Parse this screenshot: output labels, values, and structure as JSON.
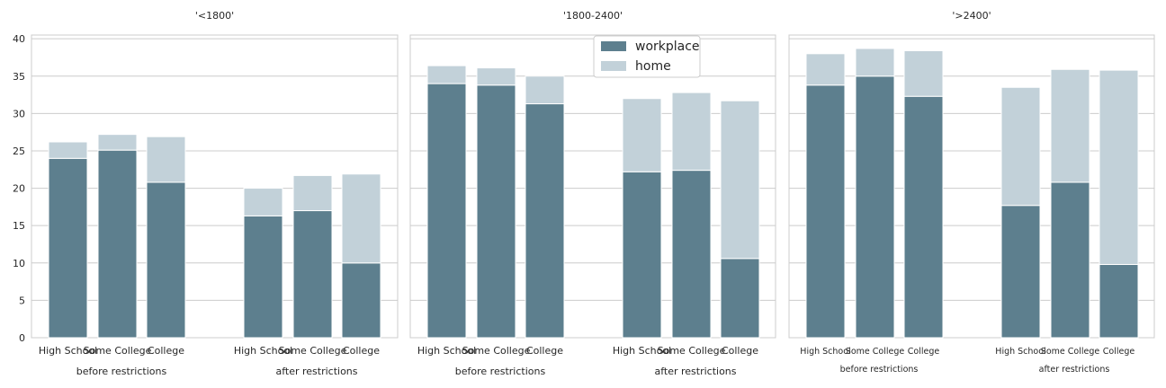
{
  "chart_data": {
    "type": "bar",
    "stacked": true,
    "colors": {
      "workplace": "#5d7f8e",
      "home": "#c2d1d9"
    },
    "legend": {
      "placement": "top-center",
      "entries": [
        "workplace",
        "home"
      ]
    },
    "y_ticks": [
      "0",
      "5",
      "10",
      "15",
      "20",
      "25",
      "30",
      "35",
      "40"
    ],
    "ylim": [
      0,
      40.5
    ],
    "grid": true,
    "panels": [
      {
        "title": "'<1800'",
        "groups": [
          {
            "label": "before restrictions",
            "categories": [
              "High School",
              "Some College",
              "College"
            ],
            "series": [
              {
                "name": "workplace",
                "values": [
                  24.0,
                  25.1,
                  20.8
                ]
              },
              {
                "name": "home",
                "values": [
                  2.2,
                  2.1,
                  6.1
                ]
              }
            ]
          },
          {
            "label": "after restrictions",
            "categories": [
              "High School",
              "Some College",
              "College"
            ],
            "series": [
              {
                "name": "workplace",
                "values": [
                  16.3,
                  17.0,
                  10.0
                ]
              },
              {
                "name": "home",
                "values": [
                  3.7,
                  4.7,
                  11.9
                ]
              }
            ]
          }
        ]
      },
      {
        "title": "'1800-2400'",
        "groups": [
          {
            "label": "before restrictions",
            "categories": [
              "High School",
              "Some College",
              "College"
            ],
            "series": [
              {
                "name": "workplace",
                "values": [
                  34.0,
                  33.8,
                  31.3
                ]
              },
              {
                "name": "home",
                "values": [
                  2.4,
                  2.3,
                  3.7
                ]
              }
            ]
          },
          {
            "label": "after restrictions",
            "categories": [
              "High School",
              "Some College",
              "College"
            ],
            "series": [
              {
                "name": "workplace",
                "values": [
                  22.2,
                  22.4,
                  10.6
                ]
              },
              {
                "name": "home",
                "values": [
                  9.8,
                  10.4,
                  21.1
                ]
              }
            ]
          }
        ]
      },
      {
        "title": "'>2400'",
        "groups": [
          {
            "label": "before restrictions",
            "categories": [
              "High School",
              "Some College",
              "College"
            ],
            "series": [
              {
                "name": "workplace",
                "values": [
                  33.8,
                  35.0,
                  32.3
                ]
              },
              {
                "name": "home",
                "values": [
                  4.2,
                  3.7,
                  6.1
                ]
              }
            ]
          },
          {
            "label": "after restrictions",
            "categories": [
              "High School",
              "Some College",
              "College"
            ],
            "series": [
              {
                "name": "workplace",
                "values": [
                  17.7,
                  20.8,
                  9.8
                ]
              },
              {
                "name": "home",
                "values": [
                  15.8,
                  15.1,
                  26.0
                ]
              }
            ]
          }
        ]
      }
    ]
  }
}
